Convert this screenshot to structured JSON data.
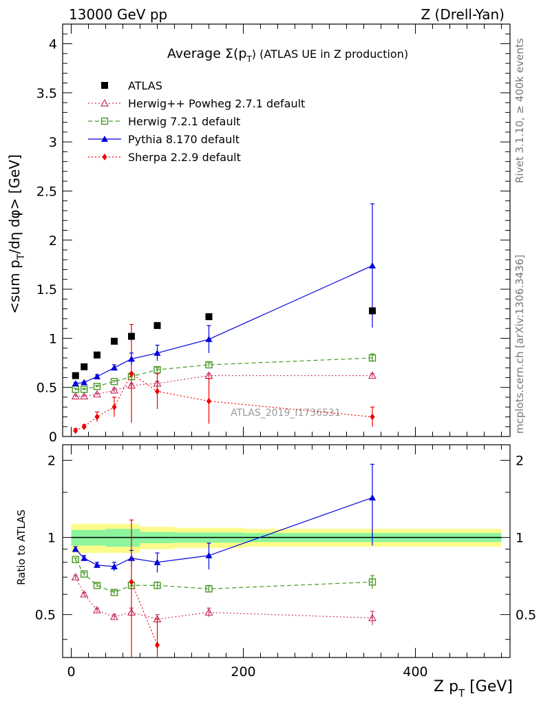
{
  "header": {
    "energy_label": "13000 GeV pp",
    "process_label": "Z (Drell-Yan)"
  },
  "side_labels": {
    "rivet": "Rivet 3.1.10, ≥ 400k events",
    "mcplots": "mcplots.cern.ch [arXiv:1306.3436]"
  },
  "watermark": "ATLAS_2019_I1736531",
  "chart_data": [
    {
      "type": "scatter",
      "title": "Average Σ(p_T) (ATLAS UE in Z production)",
      "title_main": "Average",
      "title_sym": "Σ(p",
      "title_sub": "T",
      "title_rest": ") (ATLAS UE in Z production)",
      "ylabel": "<sum p_T/dη dφ> [GeV]",
      "ylabel_a": "<sum p",
      "ylabel_sub": "T",
      "ylabel_b": "/dη dφ> [GeV]",
      "xlim": [
        -10,
        510
      ],
      "ylim": [
        0,
        4.2
      ],
      "yticks": [
        "0",
        "0.5",
        "1",
        "1.5",
        "2",
        "2.5",
        "3",
        "3.5",
        "4"
      ],
      "yticks_values": [
        0,
        0.5,
        1,
        1.5,
        2,
        2.5,
        3,
        3.5,
        4
      ],
      "series": [
        {
          "name": "ATLAS",
          "color": "#000000",
          "marker": "square-filled",
          "line": "none",
          "x": [
            5,
            15,
            30,
            50,
            70,
            100,
            160,
            350
          ],
          "y": [
            0.62,
            0.71,
            0.83,
            0.97,
            1.02,
            1.13,
            1.22,
            1.28
          ],
          "err": [
            0,
            0,
            0,
            0,
            0,
            0,
            0,
            0
          ]
        },
        {
          "name": "Herwig++ Powheg 2.7.1 default",
          "color": "#cc3366",
          "marker": "triangle-open",
          "line": "dotted",
          "x": [
            5,
            15,
            30,
            50,
            70,
            100,
            160,
            350
          ],
          "y": [
            0.41,
            0.41,
            0.43,
            0.47,
            0.52,
            0.54,
            0.62,
            0.62
          ],
          "err": [
            0.01,
            0.01,
            0.01,
            0.02,
            0.02,
            0.02,
            0.02,
            0.02
          ]
        },
        {
          "name": "Herwig 7.2.1 default",
          "color": "#449922",
          "marker": "square-open",
          "line": "dashed",
          "x": [
            5,
            15,
            30,
            50,
            70,
            100,
            160,
            350
          ],
          "y": [
            0.48,
            0.48,
            0.51,
            0.56,
            0.61,
            0.68,
            0.73,
            0.8
          ],
          "err": [
            0.01,
            0.01,
            0.01,
            0.01,
            0.02,
            0.02,
            0.02,
            0.04
          ]
        },
        {
          "name": "Pythia 8.170 default",
          "color": "#0000dd",
          "marker": "triangle-filled",
          "line": "solid",
          "x": [
            5,
            15,
            30,
            50,
            70,
            100,
            160,
            350
          ],
          "y": [
            0.54,
            0.55,
            0.61,
            0.7,
            0.79,
            0.85,
            0.99,
            1.74
          ],
          "err": [
            0.01,
            0.01,
            0.02,
            0.03,
            0.06,
            0.08,
            0.14,
            0.63
          ]
        },
        {
          "name": "Sherpa 2.2.9 default",
          "color": "#ee0000",
          "marker": "diamond-filled",
          "line": "dotted",
          "x": [
            5,
            15,
            30,
            50,
            70,
            100,
            160,
            350
          ],
          "y": [
            0.06,
            0.1,
            0.2,
            0.3,
            0.64,
            0.46,
            0.36,
            0.2
          ],
          "err": [
            0.02,
            0.02,
            0.05,
            0.1,
            0.5,
            0.18,
            0.23,
            0.1
          ]
        }
      ]
    },
    {
      "type": "scatter",
      "title": "",
      "ylabel": "Ratio to ATLAS",
      "xlabel": "Z p_T [GeV]",
      "xlabel_a": "Z p",
      "xlabel_sub": "T",
      "xlabel_b": " [GeV]",
      "xlim": [
        -10,
        510
      ],
      "ylim": [
        0.34,
        2.3
      ],
      "ylim_log": true,
      "yticks": [
        "0.5",
        "1",
        "2"
      ],
      "yticks_values": [
        0.5,
        1,
        2
      ],
      "xticks": [
        "0",
        "200",
        "400"
      ],
      "xticks_values": [
        0,
        200,
        400
      ],
      "bands": [
        {
          "x0": 0,
          "x1": 40,
          "yellow": [
            0.87,
            1.13
          ],
          "green": [
            0.93,
            1.07
          ]
        },
        {
          "x0": 40,
          "x1": 80,
          "yellow": [
            0.87,
            1.13
          ],
          "green": [
            0.92,
            1.08
          ]
        },
        {
          "x0": 80,
          "x1": 120,
          "yellow": [
            0.9,
            1.1
          ],
          "green": [
            0.95,
            1.05
          ]
        },
        {
          "x0": 120,
          "x1": 200,
          "yellow": [
            0.91,
            1.09
          ],
          "green": [
            0.955,
            1.045
          ]
        },
        {
          "x0": 200,
          "x1": 500,
          "yellow": [
            0.92,
            1.08
          ],
          "green": [
            0.96,
            1.04
          ]
        }
      ],
      "series": [
        {
          "name": "Herwig++ Powheg 2.7.1 default",
          "color": "#cc3366",
          "marker": "triangle-open",
          "line": "dotted",
          "x": [
            5,
            15,
            30,
            50,
            70,
            100,
            160,
            350
          ],
          "y": [
            0.7,
            0.6,
            0.52,
            0.49,
            0.51,
            0.48,
            0.51,
            0.485
          ],
          "err": [
            0.01,
            0.01,
            0.01,
            0.01,
            0.02,
            0.02,
            0.02,
            0.03
          ]
        },
        {
          "name": "Herwig 7.2.1 default",
          "color": "#449922",
          "marker": "square-open",
          "line": "dashed",
          "x": [
            5,
            15,
            30,
            50,
            70,
            100,
            160,
            350
          ],
          "y": [
            0.82,
            0.72,
            0.65,
            0.61,
            0.65,
            0.65,
            0.63,
            0.67
          ],
          "err": [
            0.01,
            0.01,
            0.01,
            0.01,
            0.02,
            0.02,
            0.02,
            0.04
          ]
        },
        {
          "name": "Pythia 8.170 default",
          "color": "#0000dd",
          "marker": "triangle-filled",
          "line": "solid",
          "x": [
            5,
            15,
            30,
            50,
            70,
            100,
            160,
            350
          ],
          "y": [
            0.9,
            0.83,
            0.78,
            0.77,
            0.83,
            0.8,
            0.85,
            1.43
          ],
          "err": [
            0.02,
            0.02,
            0.02,
            0.03,
            0.06,
            0.07,
            0.1,
            0.5
          ]
        },
        {
          "name": "Sherpa 2.2.9 default",
          "color": "#ee0000",
          "marker": "diamond-filled",
          "line": "dotted",
          "x": [
            70,
            100
          ],
          "y": [
            0.67,
            0.38
          ],
          "err": [
            0.5,
            0.1
          ]
        }
      ]
    }
  ]
}
